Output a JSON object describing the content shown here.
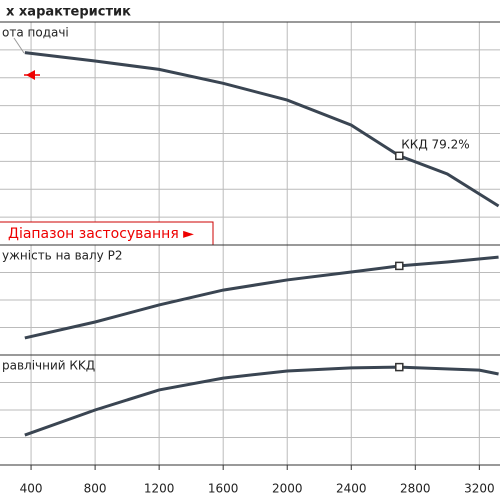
{
  "chart_data": [
    {
      "type": "line",
      "title": "х характеристик",
      "label": "ота подачі",
      "x": [
        361,
        800,
        1200,
        1600,
        2000,
        2400,
        2700,
        3000,
        3320
      ],
      "series": [
        {
          "name": "ККД  79.2%",
          "color": "#3a4552",
          "values": [
            6.9,
            6.6,
            6.3,
            5.8,
            5.2,
            4.3,
            3.2,
            2.55,
            1.4
          ]
        }
      ],
      "operating_point": 2700,
      "range_label": "Діапазон застосування ►",
      "xlim": [
        206,
        3329
      ],
      "ylim": [
        0,
        8
      ]
    },
    {
      "type": "line",
      "label": "ужність на валу P2",
      "x": [
        361,
        800,
        1200,
        1600,
        2000,
        2400,
        2700,
        3000,
        3320
      ],
      "series": [
        {
          "color": "#3a4552",
          "values": [
            0.62,
            1.2,
            1.82,
            2.36,
            2.73,
            3.02,
            3.24,
            3.38,
            3.56
          ]
        }
      ],
      "xlim": [
        206,
        3329
      ],
      "ylim": [
        0,
        4
      ]
    },
    {
      "type": "line",
      "label": "равлічний КKД",
      "x": [
        361,
        800,
        1200,
        1600,
        2000,
        2400,
        2700,
        3200,
        3320
      ],
      "series": [
        {
          "color": "#3a4552",
          "values": [
            1.09,
            2.0,
            2.73,
            3.16,
            3.42,
            3.53,
            3.56,
            3.45,
            3.31
          ]
        }
      ],
      "xlim": [
        206,
        3329
      ],
      "ylim": [
        0,
        4
      ],
      "xticks": [
        400,
        800,
        1200,
        1600,
        2000,
        2400,
        2800,
        3200
      ]
    }
  ]
}
